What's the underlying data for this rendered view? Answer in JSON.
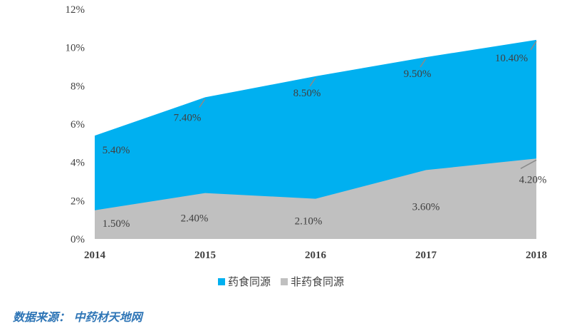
{
  "chart_data": {
    "type": "area",
    "categories": [
      "2014",
      "2015",
      "2016",
      "2017",
      "2018"
    ],
    "series": [
      {
        "name": "非药食同源",
        "values": [
          1.5,
          2.4,
          2.1,
          3.6,
          4.2
        ],
        "color": "#c0c0c0",
        "labels": [
          "1.50%",
          "2.40%",
          "2.10%",
          "3.60%",
          "4.20%"
        ]
      },
      {
        "name": "药食同源",
        "values": [
          5.4,
          7.4,
          8.5,
          9.5,
          10.4
        ],
        "color": "#00b0f0",
        "labels": [
          "5.40%",
          "7.40%",
          "8.50%",
          "9.50%",
          "10.40%"
        ]
      }
    ],
    "ylim": [
      0,
      12
    ],
    "yticks": [
      "0%",
      "2%",
      "4%",
      "6%",
      "8%",
      "10%",
      "12%"
    ],
    "grid": false,
    "legend_position": "bottom"
  },
  "legend": [
    {
      "label": "药食同源",
      "color": "#00b0f0"
    },
    {
      "label": "非药食同源",
      "color": "#c0c0c0"
    }
  ],
  "source_text": "数据来源： 中药材天地网"
}
